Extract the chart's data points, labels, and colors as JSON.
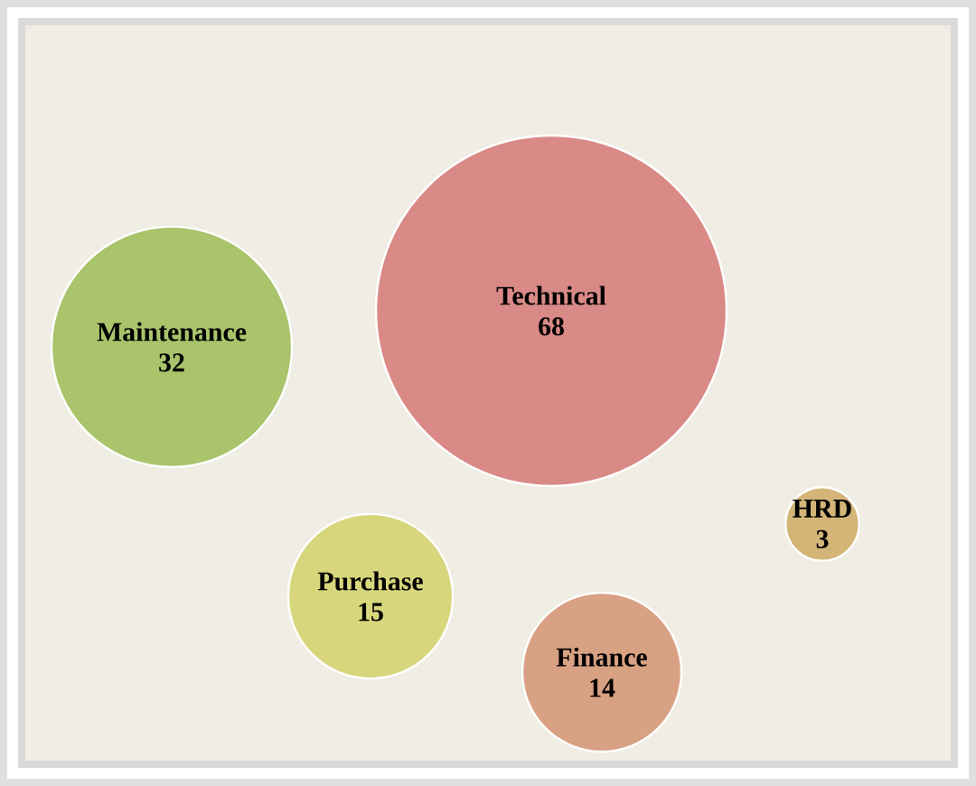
{
  "chart_data": {
    "type": "other",
    "categories": [
      "Technical",
      "Maintenance",
      "Purchase",
      "Finance",
      "HRD"
    ],
    "values": [
      68,
      32,
      15,
      14,
      3
    ],
    "data_labels": true,
    "colors": [
      "#d98a87",
      "#a9c46b",
      "#d8d67c",
      "#d9a183",
      "#d3b577"
    ]
  }
}
